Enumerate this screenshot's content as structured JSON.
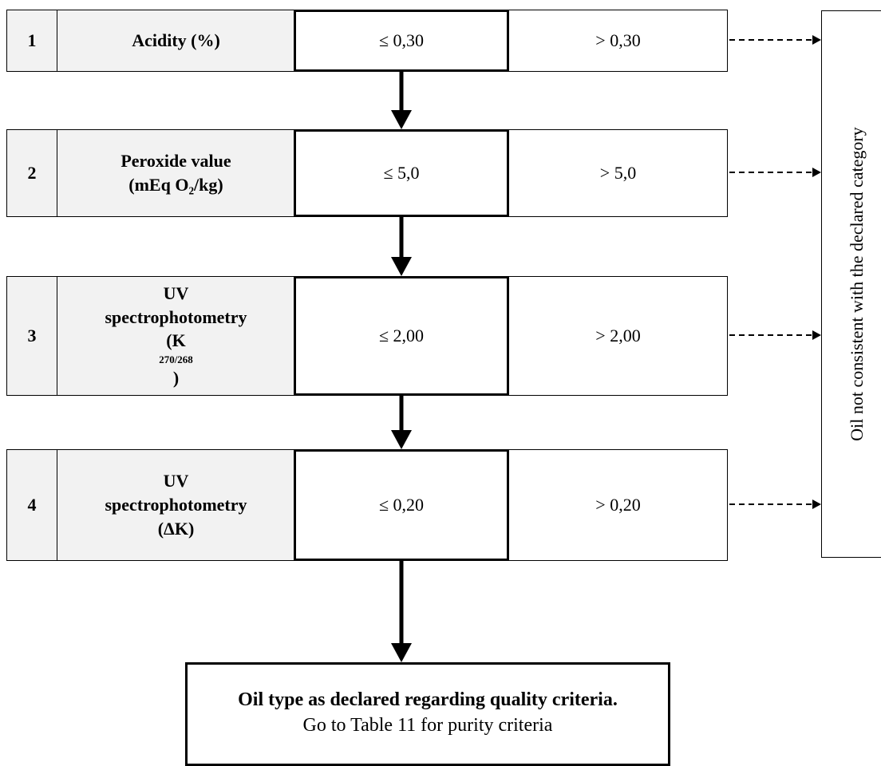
{
  "steps": [
    {
      "number": "1",
      "parameter": [
        "Acidity (%)"
      ],
      "pass": "≤ 0,30",
      "fail": "> 0,30"
    },
    {
      "number": "2",
      "parameter": [
        "Peroxide value",
        "(mEq O₂/kg)"
      ],
      "pass": "≤ 5,0",
      "fail": "> 5,0"
    },
    {
      "number": "3",
      "parameter": [
        "UV",
        "spectrophotometry"
      ],
      "parameter_sub_prefix": "(K ",
      "parameter_sub": "270/268",
      "parameter_sub_suffix": ")",
      "pass": "≤ 2,00",
      "fail": "> 2,00"
    },
    {
      "number": "4",
      "parameter": [
        "UV",
        "spectrophotometry",
        "(ΔK)"
      ],
      "pass": "≤ 0,20",
      "fail": "> 0,20"
    }
  ],
  "reject_box": {
    "text": "Oil not consistent with the declared category"
  },
  "final_box": {
    "line1": "Oil type as declared regarding quality criteria.",
    "line2": "Go to Table 11 for purity criteria"
  }
}
